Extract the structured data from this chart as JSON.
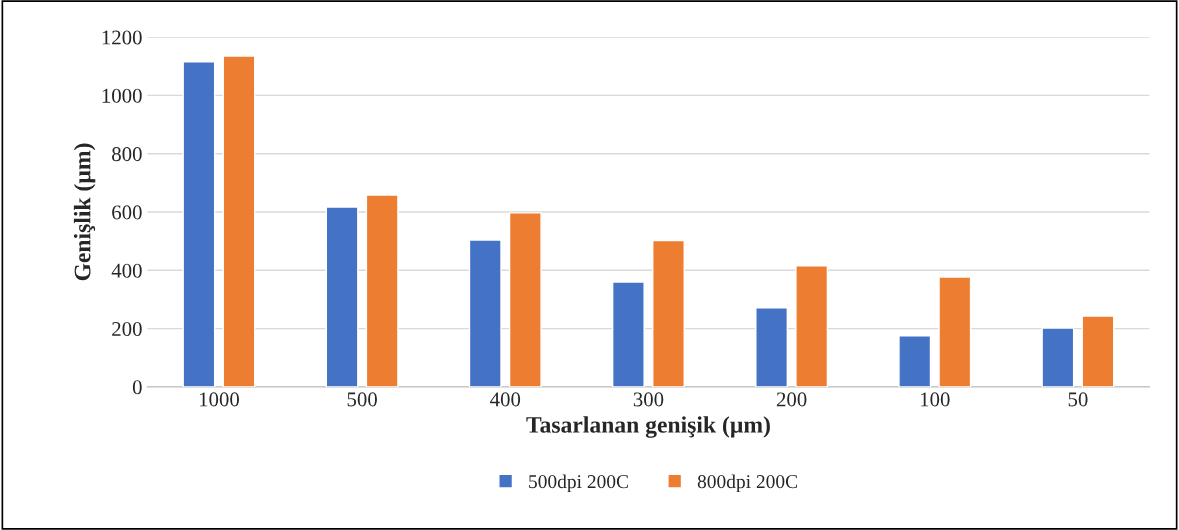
{
  "chart_data": {
    "type": "bar",
    "xlabel": "Tasarlanan genişik (µm)",
    "ylabel": "Genişlik (µm)",
    "categories": [
      "1000",
      "500",
      "400",
      "300",
      "200",
      "100",
      "50"
    ],
    "series": [
      {
        "name": "500dpi 200C",
        "color": "#4472c4",
        "values": [
          1115,
          617,
          504,
          360,
          271,
          175,
          202
        ]
      },
      {
        "name": "800dpi 200C",
        "color": "#ed7d31",
        "values": [
          1135,
          658,
          597,
          502,
          415,
          377,
          243
        ]
      }
    ],
    "ylim": [
      0,
      1200
    ],
    "yticks": [
      0,
      200,
      400,
      600,
      800,
      1000,
      1200
    ],
    "grid": "y",
    "legend": "bottom"
  }
}
